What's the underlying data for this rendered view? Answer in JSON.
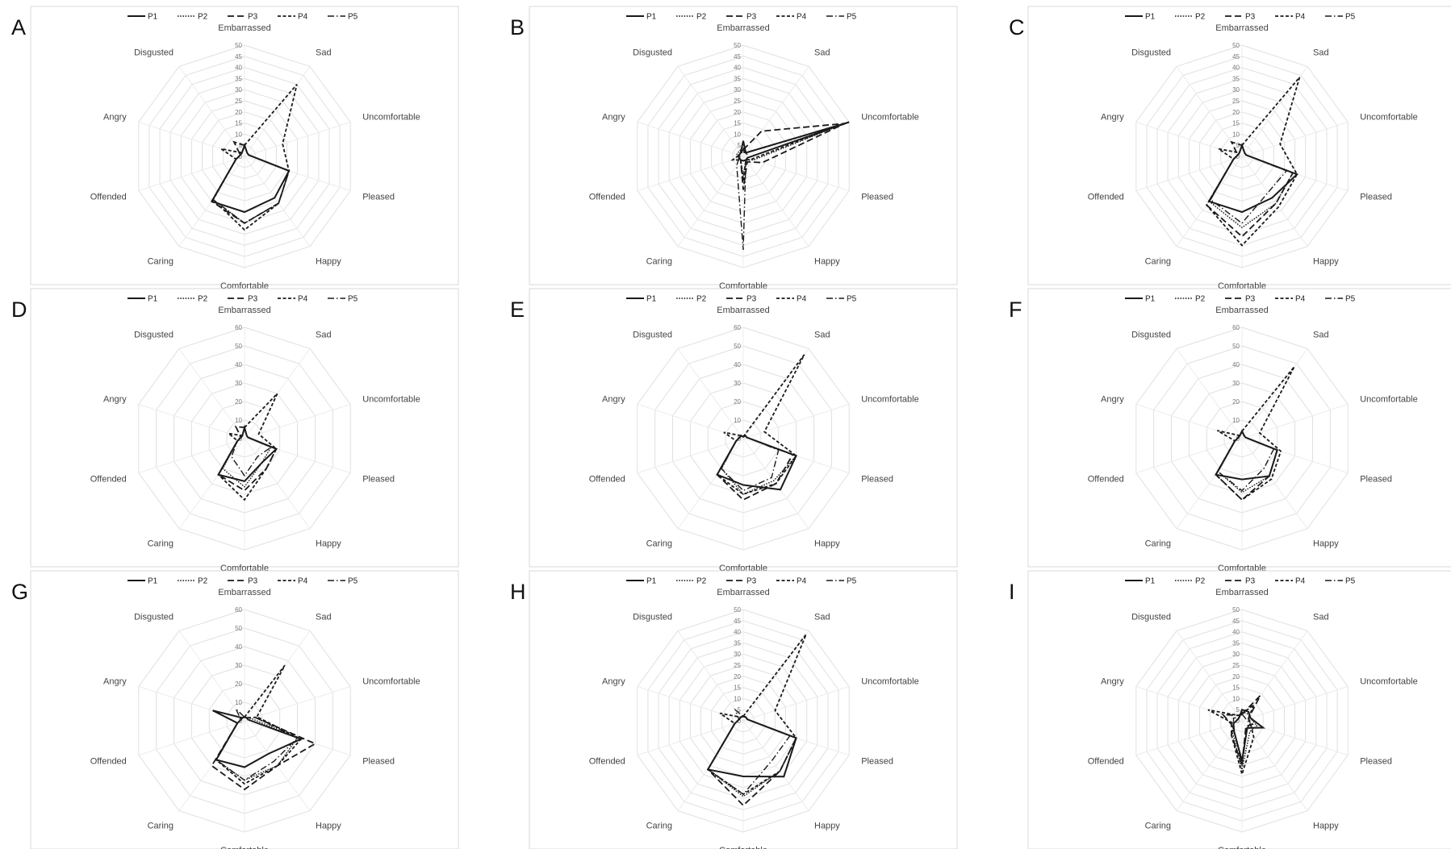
{
  "categories": [
    "Embarrassed",
    "Sad",
    "Uncomfortable",
    "Pleased",
    "Happy",
    "Comfortable",
    "Caring",
    "Offended",
    "Angry",
    "Disgusted"
  ],
  "legend": [
    "P1",
    "P2",
    "P3",
    "P4",
    "P5"
  ],
  "chart_data": [
    {
      "type": "radar",
      "panel": "A",
      "rmax": 50,
      "ticks": [
        0,
        5,
        10,
        15,
        20,
        25,
        30,
        35,
        40,
        45,
        50
      ],
      "series": [
        {
          "name": "P1",
          "values": [
            5,
            2,
            2,
            21,
            23,
            25,
            25,
            4,
            2,
            2
          ]
        },
        {
          "name": "P2",
          "values": [
            5,
            2,
            2,
            21,
            26,
            30,
            24,
            4,
            2,
            2
          ]
        },
        {
          "name": "P3",
          "values": [
            5,
            2,
            2,
            21,
            26,
            30,
            25,
            4,
            2,
            8
          ]
        },
        {
          "name": "P4",
          "values": [
            5,
            40,
            18,
            21,
            26,
            33,
            24,
            4,
            11,
            2
          ]
        },
        {
          "name": "P5",
          "values": [
            5,
            2,
            2,
            21,
            26,
            30,
            24,
            4,
            2,
            2
          ]
        }
      ]
    },
    {
      "type": "radar",
      "panel": "B",
      "rmax": 50,
      "ticks": [
        0,
        5,
        10,
        15,
        20,
        25,
        30,
        35,
        40,
        45,
        50
      ],
      "series": [
        {
          "name": "P1",
          "values": [
            7,
            2,
            50,
            2,
            2,
            2,
            2,
            2,
            2,
            2
          ]
        },
        {
          "name": "P2",
          "values": [
            4,
            2,
            47,
            5,
            2,
            9,
            2,
            2,
            3,
            3
          ]
        },
        {
          "name": "P3",
          "values": [
            3,
            14,
            48,
            9,
            3,
            15,
            2,
            2,
            2,
            2
          ]
        },
        {
          "name": "P4",
          "values": [
            2,
            2,
            46,
            4,
            2,
            11,
            2,
            5,
            2,
            2
          ]
        },
        {
          "name": "P5",
          "values": [
            3,
            2,
            2,
            2,
            2,
            42,
            5,
            2,
            2,
            2
          ]
        }
      ]
    },
    {
      "type": "radar",
      "panel": "C",
      "rmax": 50,
      "ticks": [
        0,
        5,
        10,
        15,
        20,
        25,
        30,
        35,
        40,
        45,
        50
      ],
      "series": [
        {
          "name": "P1",
          "values": [
            5,
            2,
            2,
            26,
            23,
            25,
            25,
            4,
            2,
            2
          ]
        },
        {
          "name": "P2",
          "values": [
            5,
            2,
            2,
            24,
            26,
            32,
            25,
            4,
            2,
            2
          ]
        },
        {
          "name": "P3",
          "values": [
            5,
            2,
            2,
            24,
            26,
            36,
            27,
            4,
            2,
            8
          ]
        },
        {
          "name": "P4",
          "values": [
            5,
            44,
            18,
            26,
            28,
            40,
            27,
            4,
            11,
            2
          ]
        },
        {
          "name": "P5",
          "values": [
            5,
            2,
            2,
            21,
            20,
            30,
            24,
            4,
            2,
            2
          ]
        }
      ]
    },
    {
      "type": "radar",
      "panel": "D",
      "rmax": 60,
      "ticks": [
        0,
        10,
        20,
        30,
        40,
        50,
        60
      ],
      "series": [
        {
          "name": "P1",
          "values": [
            6,
            2,
            2,
            18,
            16,
            23,
            24,
            4,
            2,
            2
          ]
        },
        {
          "name": "P2",
          "values": [
            6,
            2,
            2,
            15,
            16,
            26,
            20,
            4,
            2,
            2
          ]
        },
        {
          "name": "P3",
          "values": [
            6,
            2,
            2,
            18,
            20,
            28,
            24,
            4,
            2,
            8
          ]
        },
        {
          "name": "P4",
          "values": [
            6,
            30,
            8,
            18,
            20,
            33,
            24,
            4,
            9,
            2
          ]
        },
        {
          "name": "P5",
          "values": [
            6,
            2,
            2,
            15,
            12,
            20,
            12,
            4,
            2,
            2
          ]
        }
      ]
    },
    {
      "type": "radar",
      "panel": "E",
      "rmax": 60,
      "ticks": [
        0,
        10,
        20,
        30,
        40,
        50,
        60
      ],
      "series": [
        {
          "name": "P1",
          "values": [
            1,
            2,
            2,
            30,
            34,
            25,
            24,
            4,
            2,
            2
          ]
        },
        {
          "name": "P2",
          "values": [
            1,
            2,
            2,
            30,
            28,
            30,
            20,
            4,
            2,
            2
          ]
        },
        {
          "name": "P3",
          "values": [
            1,
            2,
            2,
            28,
            30,
            33,
            24,
            4,
            2,
            2
          ]
        },
        {
          "name": "P4",
          "values": [
            1,
            56,
            12,
            30,
            30,
            30,
            24,
            4,
            11,
            2
          ]
        },
        {
          "name": "P5",
          "values": [
            1,
            2,
            2,
            20,
            26,
            28,
            20,
            4,
            2,
            2
          ]
        }
      ]
    },
    {
      "type": "radar",
      "panel": "F",
      "rmax": 60,
      "ticks": [
        0,
        10,
        20,
        30,
        40,
        50,
        60
      ],
      "series": [
        {
          "name": "P1",
          "values": [
            4,
            2,
            2,
            20,
            25,
            22,
            24,
            4,
            2,
            2
          ]
        },
        {
          "name": "P2",
          "values": [
            4,
            2,
            2,
            20,
            25,
            29,
            22,
            4,
            2,
            2
          ]
        },
        {
          "name": "P3",
          "values": [
            4,
            2,
            2,
            20,
            25,
            33,
            24,
            4,
            2,
            2
          ]
        },
        {
          "name": "P4",
          "values": [
            4,
            48,
            10,
            22,
            27,
            33,
            24,
            4,
            14,
            2
          ]
        },
        {
          "name": "P5",
          "values": [
            4,
            2,
            2,
            18,
            20,
            28,
            22,
            4,
            2,
            2
          ]
        }
      ]
    },
    {
      "type": "radar",
      "panel": "G",
      "rmax": 60,
      "ticks": [
        0,
        10,
        20,
        30,
        40,
        50,
        60
      ],
      "series": [
        {
          "name": "P1",
          "values": [
            2,
            2,
            2,
            32,
            22,
            25,
            26,
            4,
            18,
            2
          ]
        },
        {
          "name": "P2",
          "values": [
            2,
            2,
            4,
            30,
            30,
            32,
            26,
            4,
            2,
            2
          ]
        },
        {
          "name": "P3",
          "values": [
            2,
            2,
            6,
            40,
            30,
            37,
            30,
            4,
            2,
            2
          ]
        },
        {
          "name": "P4",
          "values": [
            2,
            37,
            7,
            32,
            30,
            34,
            26,
            4,
            2,
            2
          ]
        },
        {
          "name": "P5",
          "values": [
            2,
            2,
            6,
            30,
            27,
            32,
            26,
            4,
            2,
            8
          ]
        }
      ]
    },
    {
      "type": "radar",
      "panel": "H",
      "rmax": 50,
      "ticks": [
        0,
        5,
        10,
        15,
        20,
        25,
        30,
        35,
        40,
        45,
        50
      ],
      "series": [
        {
          "name": "P1",
          "values": [
            2,
            2,
            2,
            25,
            31,
            25,
            27,
            4,
            2,
            2
          ]
        },
        {
          "name": "P2",
          "values": [
            2,
            2,
            2,
            25,
            28,
            34,
            27,
            4,
            2,
            2
          ]
        },
        {
          "name": "P3",
          "values": [
            2,
            2,
            2,
            25,
            28,
            38,
            27,
            4,
            2,
            2
          ]
        },
        {
          "name": "P4",
          "values": [
            2,
            48,
            15,
            25,
            28,
            33,
            27,
            4,
            11,
            2
          ]
        },
        {
          "name": "P5",
          "values": [
            2,
            2,
            2,
            22,
            22,
            33,
            27,
            4,
            2,
            6
          ]
        }
      ]
    },
    {
      "type": "radar",
      "panel": "I",
      "rmax": 50,
      "ticks": [
        0,
        5,
        10,
        15,
        20,
        25,
        30,
        35,
        40,
        45,
        50
      ],
      "series": [
        {
          "name": "P1",
          "values": [
            5,
            5,
            4,
            10,
            4,
            18,
            6,
            4,
            2,
            2
          ]
        },
        {
          "name": "P2",
          "values": [
            4,
            4,
            4,
            7,
            6,
            22,
            7,
            4,
            2,
            2
          ]
        },
        {
          "name": "P3",
          "values": [
            3,
            14,
            3,
            5,
            3,
            20,
            8,
            5,
            9,
            3
          ]
        },
        {
          "name": "P4",
          "values": [
            3,
            9,
            3,
            4,
            9,
            24,
            8,
            4,
            16,
            3
          ]
        },
        {
          "name": "P5",
          "values": [
            3,
            2,
            2,
            4,
            4,
            20,
            6,
            4,
            4,
            2
          ]
        }
      ]
    }
  ]
}
